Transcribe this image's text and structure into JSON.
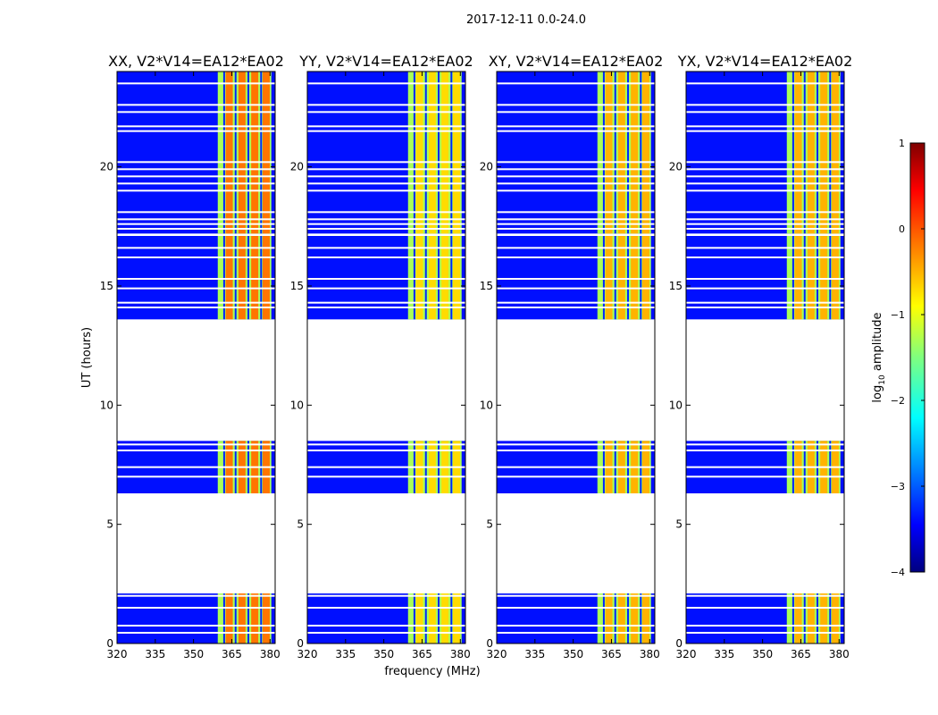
{
  "figure": {
    "suptitle": "2017-12-11 0.0-24.0",
    "xlabel": "frequency (MHz)",
    "ylabel": "UT (hours)"
  },
  "chart_data": {
    "type": "heatmap",
    "colormap": "jet",
    "x": {
      "label": "frequency (MHz)",
      "range": [
        320,
        382
      ],
      "ticks": [
        320,
        335,
        350,
        365,
        380
      ]
    },
    "y": {
      "label": "UT (hours)",
      "range": [
        0,
        24
      ],
      "ticks": [
        0,
        5,
        10,
        15,
        20
      ]
    },
    "colorbar": {
      "label_prefix": "log",
      "label_sub": "10",
      "label_suffix": " amplitude",
      "range": [
        -4,
        1
      ],
      "ticks": [
        -4,
        -3,
        -2,
        -1,
        0,
        1
      ]
    },
    "bright_band_mhz": [
      359.5,
      380.5
    ],
    "bright_channels_mhz": [
      364,
      369,
      374,
      378.5
    ],
    "data_blocks_hours": [
      [
        0.0,
        2.1
      ],
      [
        6.3,
        8.5
      ],
      [
        13.6,
        17.1
      ],
      [
        17.2,
        24.0
      ]
    ],
    "blank_rows_hours": [
      0.45,
      0.75,
      1.5,
      2.0,
      7.0,
      7.4,
      8.1,
      8.35,
      14.1,
      14.3,
      14.9,
      15.3,
      16.2,
      16.6,
      17.4,
      17.6,
      17.8,
      18.1,
      19.0,
      19.3,
      19.6,
      19.9,
      20.2,
      21.5,
      21.7,
      22.3,
      22.6,
      23.5
    ],
    "panels": [
      {
        "title": "XX, V2*V14=EA12*EA02",
        "peak_log_amp": -0.2
      },
      {
        "title": "YY, V2*V14=EA12*EA02",
        "peak_log_amp": -0.7
      },
      {
        "title": "XY, V2*V14=EA12*EA02",
        "peak_log_amp": -0.5
      },
      {
        "title": "YX, V2*V14=EA12*EA02",
        "peak_log_amp": -0.5
      }
    ]
  }
}
